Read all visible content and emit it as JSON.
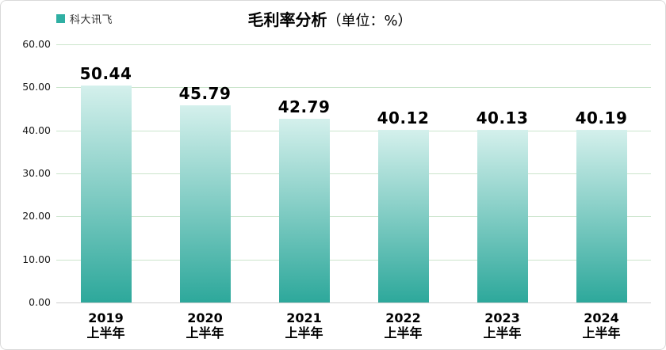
{
  "card": {
    "legend": {
      "label": "科大讯飞",
      "swatch_color": "#2fafa3"
    },
    "title": {
      "main": "毛利率分析",
      "unit": "（单位：%）"
    }
  },
  "chart_data": {
    "type": "bar",
    "title": "毛利率分析（单位：%）",
    "legend": [
      "科大讯飞"
    ],
    "legend_position": "top-left",
    "categories": [
      "2019 上半年",
      "2020 上半年",
      "2021 上半年",
      "2022 上半年",
      "2023 上半年",
      "2024 上半年"
    ],
    "category_lines": [
      [
        "2019",
        "上半年"
      ],
      [
        "2020",
        "上半年"
      ],
      [
        "2021",
        "上半年"
      ],
      [
        "2022",
        "上半年"
      ],
      [
        "2023",
        "上半年"
      ],
      [
        "2024",
        "上半年"
      ]
    ],
    "series": [
      {
        "name": "科大讯飞",
        "values": [
          50.44,
          45.79,
          42.79,
          40.12,
          40.13,
          40.19
        ]
      }
    ],
    "value_labels": [
      "50.44",
      "45.79",
      "42.79",
      "40.12",
      "40.13",
      "40.19"
    ],
    "xlabel": "",
    "ylabel": "",
    "ylim": [
      0,
      60
    ],
    "y_ticks": [
      "60.00",
      "50.00",
      "40.00",
      "30.00",
      "20.00",
      "10.00",
      "0.00"
    ],
    "grid": "horizontal",
    "colors": {
      "bar_gradient_top": "#d4f0ec",
      "bar_gradient_bottom": "#2da89b",
      "gridline": "#cbe5cc",
      "axis_line": "#cfcfcf",
      "label_text": "#000000"
    }
  }
}
